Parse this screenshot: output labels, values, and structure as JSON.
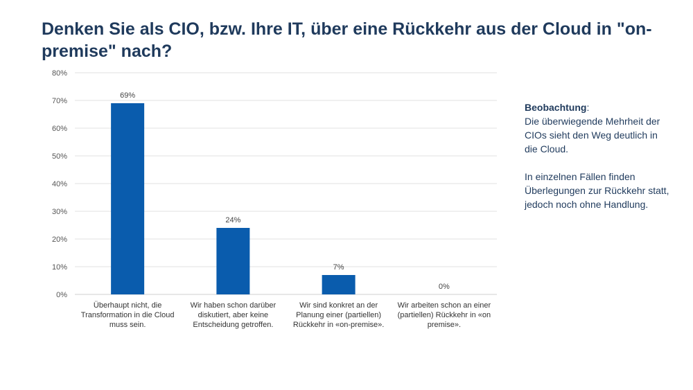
{
  "title": "Denken Sie als CIO, bzw. Ihre IT, über eine Rückkehr aus der Cloud in \"on-premise\" nach?",
  "chart_data": {
    "type": "bar",
    "categories": [
      "Überhaupt nicht, die Transformation in die Cloud muss sein.",
      "Wir haben schon darüber diskutiert, aber keine Entscheidung getroffen.",
      "Wir sind konkret an der Planung einer (partiellen) Rückkehr in «on-premise».",
      "Wir arbeiten schon an einer (partiellen) Rückkehr in «on premise»."
    ],
    "values": [
      69,
      24,
      7,
      0
    ],
    "data_labels": [
      "69%",
      "24%",
      "7%",
      "0%"
    ],
    "yticks": [
      "0%",
      "10%",
      "20%",
      "30%",
      "40%",
      "50%",
      "60%",
      "70%",
      "80%"
    ],
    "ylim": [
      0,
      80
    ],
    "grid": true,
    "bar_color": "#0a5cad"
  },
  "note": {
    "heading": "Beobachtung",
    "heading_suffix": ":",
    "line1": "Die überwiegende Mehrheit der CIOs sieht den Weg deutlich in die Cloud.",
    "line2": "In einzelnen Fällen finden Überlegungen zur Rückkehr statt, jedoch noch ohne Handlung."
  }
}
